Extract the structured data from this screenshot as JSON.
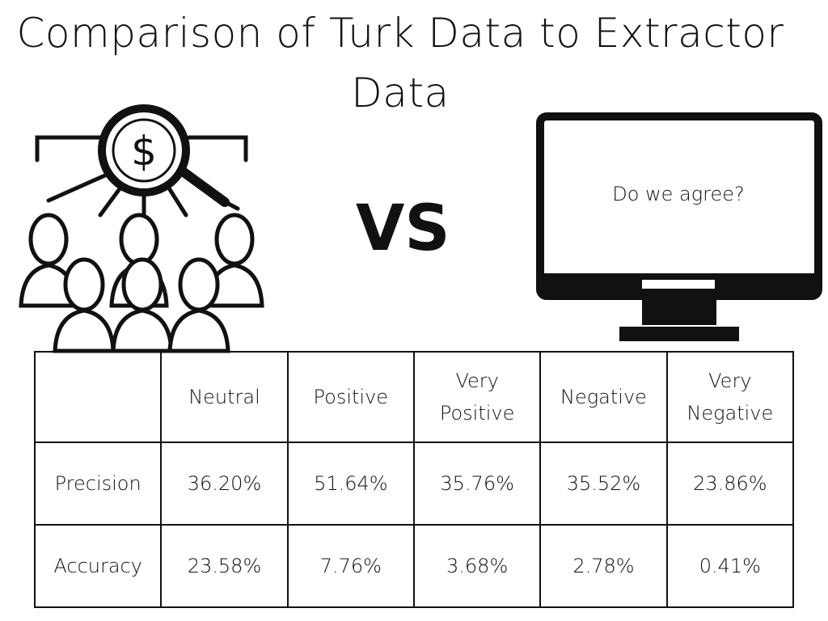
{
  "title": "Comparison of Turk Data to Extractor Data",
  "vs_label": "VS",
  "monitor_text": "Do we agree?",
  "icons": [
    "crowd-search-icon",
    "computer-monitor-icon"
  ],
  "table": {
    "headers": [
      "",
      "Neutral",
      "Positive",
      "Very Positive",
      "Negative",
      "Very Negative"
    ],
    "rows": [
      {
        "label": "Precision",
        "values": [
          "36.20%",
          "51.64%",
          "35.76%",
          "35.52%",
          "23.86%"
        ]
      },
      {
        "label": "Accuracy",
        "values": [
          "23.58%",
          "7.76%",
          "3.68%",
          "2.78%",
          "0.41%"
        ]
      }
    ]
  }
}
